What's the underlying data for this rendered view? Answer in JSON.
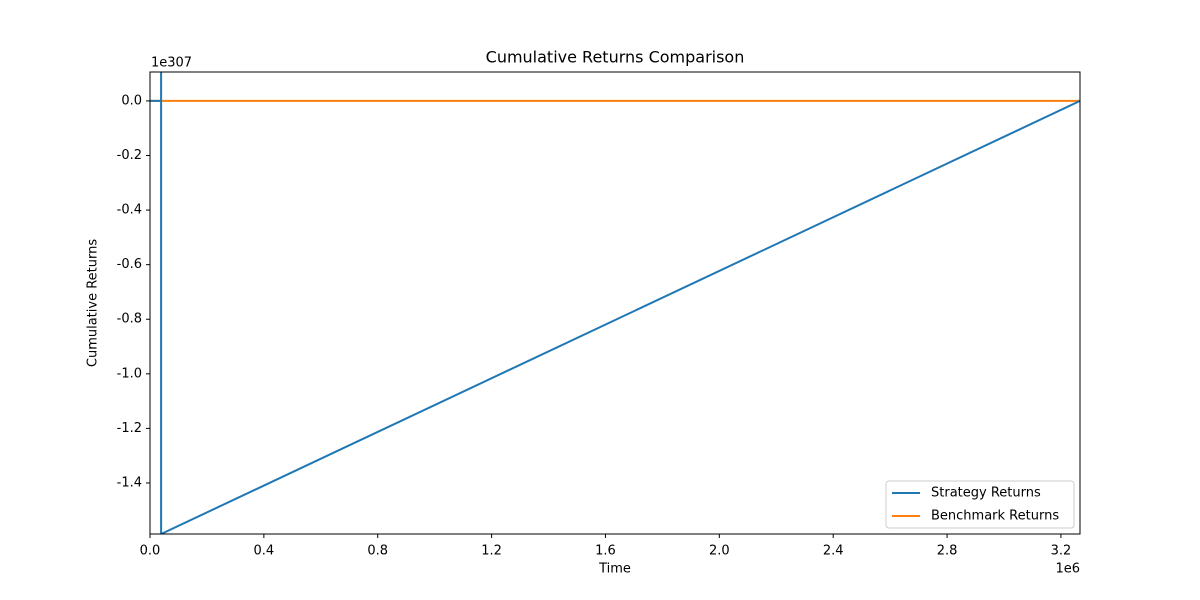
{
  "chart_data": {
    "type": "line",
    "title": "Cumulative Returns Comparison",
    "x_label": "Time",
    "y_label": "Cumulative Returns",
    "x_offset_label": "1e6",
    "y_offset_label": "1e307",
    "series": [
      {
        "name": "Strategy Returns",
        "color": "#1f77b4",
        "x": [
          0,
          0.039,
          0.039,
          0.039,
          3.267
        ],
        "values": [
          0,
          0,
          0.106,
          -1.587,
          0
        ]
      },
      {
        "name": "Benchmark Returns",
        "color": "#ff7f0e",
        "x": [
          0,
          3.267
        ],
        "values": [
          0,
          0
        ]
      }
    ],
    "xlim": [
      0,
      3.267
    ],
    "xticks": [
      {
        "value": 0,
        "label": "0.0"
      },
      0.4,
      0.8,
      1.2,
      1.6,
      {
        "value": 2,
        "label": "2.0"
      },
      2.4,
      2.8,
      3.2
    ],
    "ylim": [
      -1.587,
      0.106
    ],
    "yticks": [
      {
        "value": 0,
        "label": "0.0"
      },
      -0.2,
      -0.4,
      -0.6,
      -0.8,
      {
        "value": -1,
        "label": "-1.0"
      },
      -1.2,
      -1.4
    ],
    "grid": false,
    "legend": "lower right"
  }
}
